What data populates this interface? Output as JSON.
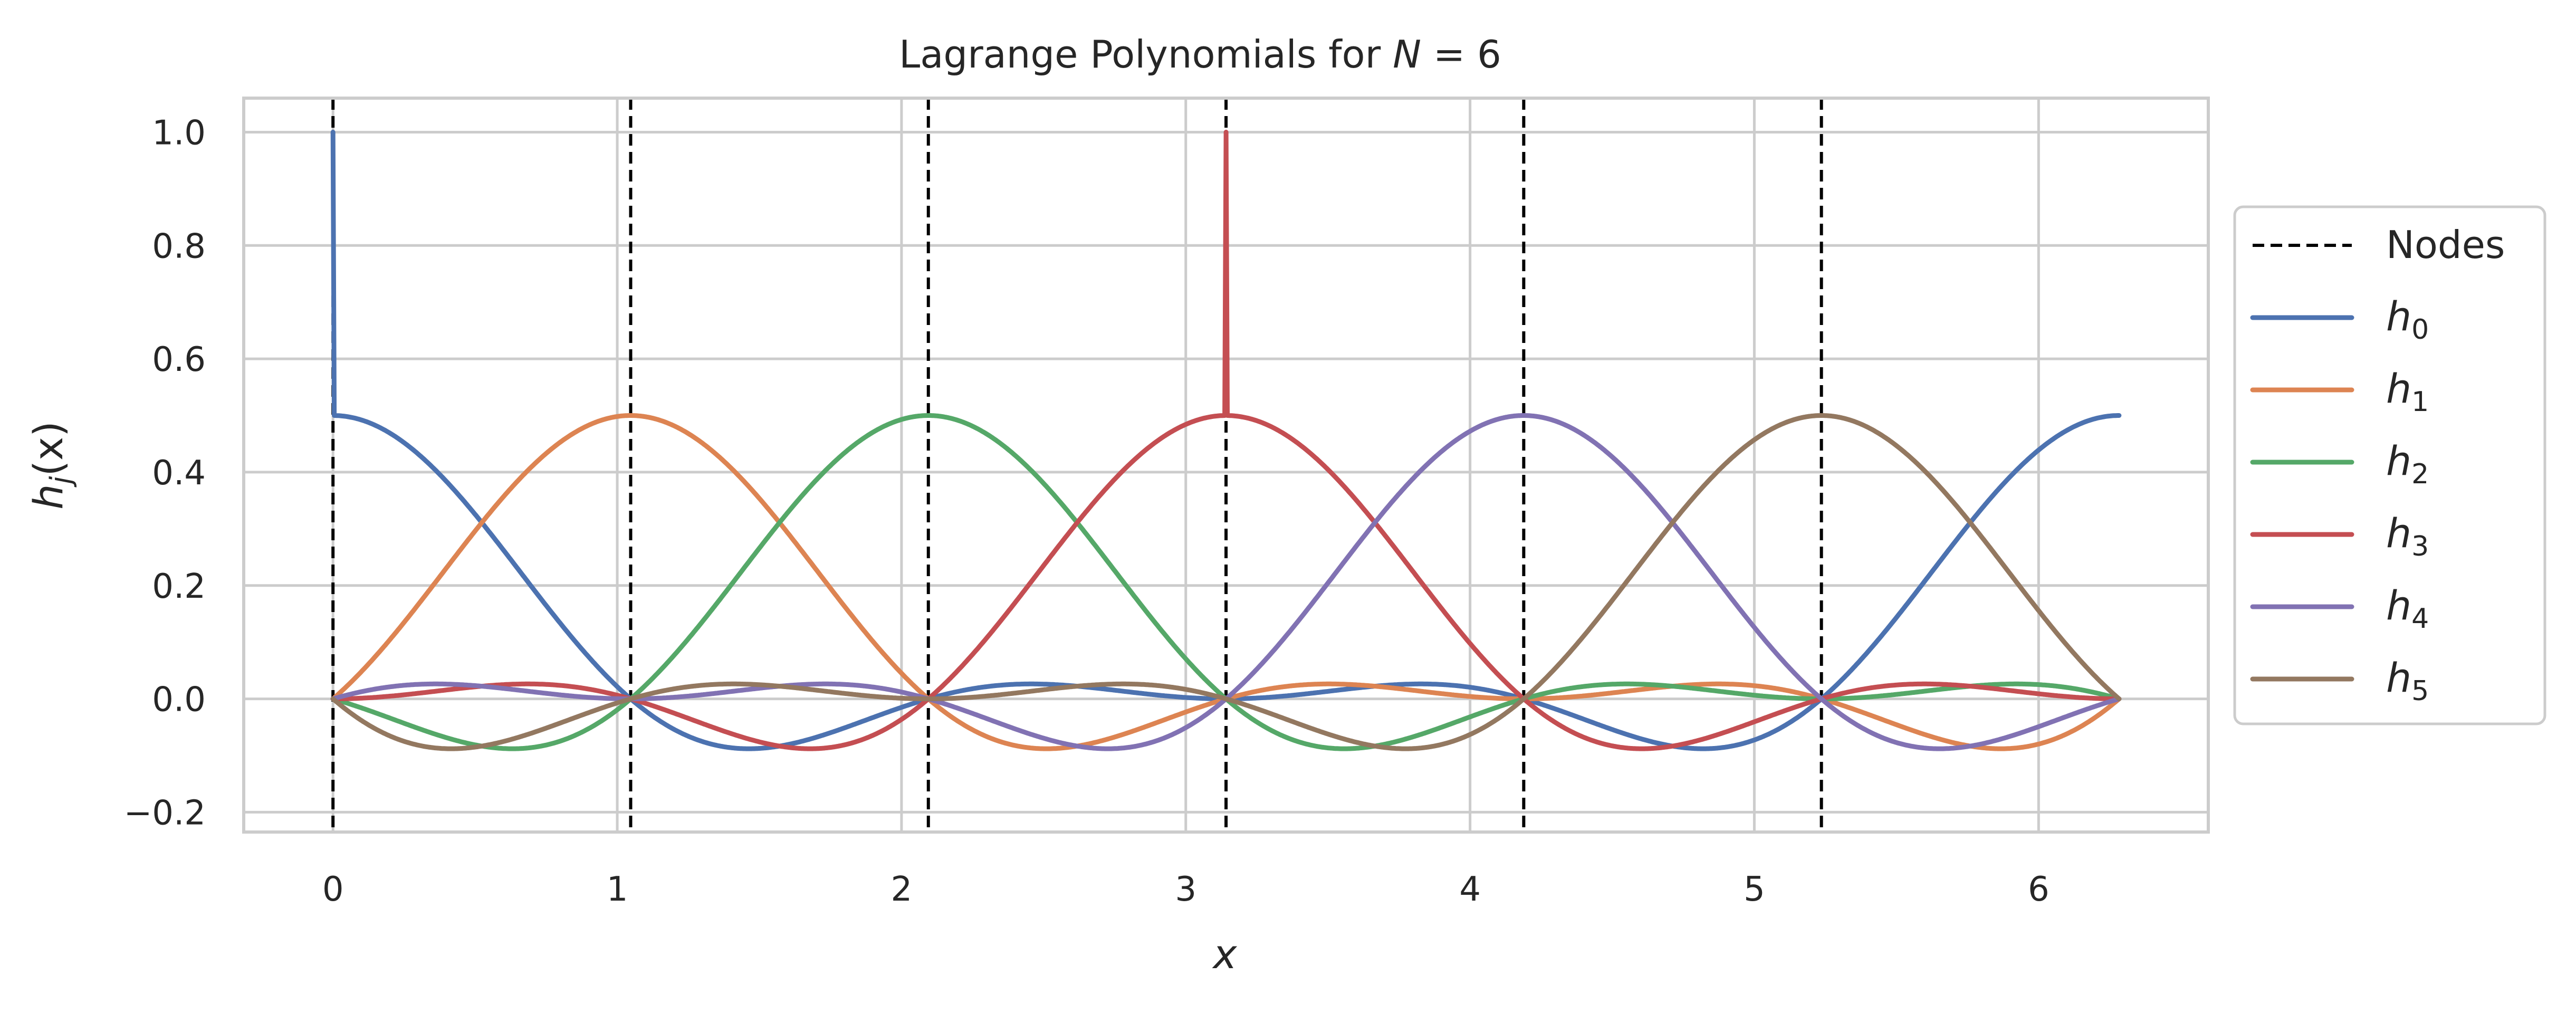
{
  "chart_data": {
    "type": "line",
    "title_prefix": "Lagrange Polynomials for ",
    "title_var": "N",
    "title_suffix": " = 6",
    "xlabel": "x",
    "ylabel_base": "h",
    "ylabel_sub": "j",
    "ylabel_arg": "(x)",
    "xlim": [
      -0.314,
      6.597
    ],
    "ylim": [
      -0.235,
      1.06
    ],
    "xticks": [
      0,
      1,
      2,
      3,
      4,
      5,
      6
    ],
    "xtick_labels": [
      "0",
      "1",
      "2",
      "3",
      "4",
      "5",
      "6"
    ],
    "yticks": [
      -0.2,
      0.0,
      0.2,
      0.4,
      0.6,
      0.8,
      1.0
    ],
    "ytick_labels": [
      "−0.2",
      "0.0",
      "0.2",
      "0.4",
      "0.6",
      "0.8",
      "1.0"
    ],
    "grid": true,
    "legend_position": "outside right",
    "nodes": {
      "label": "Nodes",
      "x": [
        0.0,
        1.0472,
        2.0944,
        3.1416,
        4.1888,
        5.236
      ],
      "color": "#000000",
      "style": "dashed"
    },
    "x_range": [
      0,
      6.2832
    ],
    "period": 6.2832,
    "series": [
      {
        "name": "h",
        "sub": "0",
        "node": 0.0,
        "color": "#4c72b0"
      },
      {
        "name": "h",
        "sub": "1",
        "node": 1.0472,
        "color": "#dd8452"
      },
      {
        "name": "h",
        "sub": "2",
        "node": 2.0944,
        "color": "#55a868"
      },
      {
        "name": "h",
        "sub": "3",
        "node": 3.1416,
        "color": "#c44e52"
      },
      {
        "name": "h",
        "sub": "4",
        "node": 4.1888,
        "color": "#8172b3"
      },
      {
        "name": "h",
        "sub": "5",
        "node": 5.236,
        "color": "#937860"
      }
    ]
  }
}
